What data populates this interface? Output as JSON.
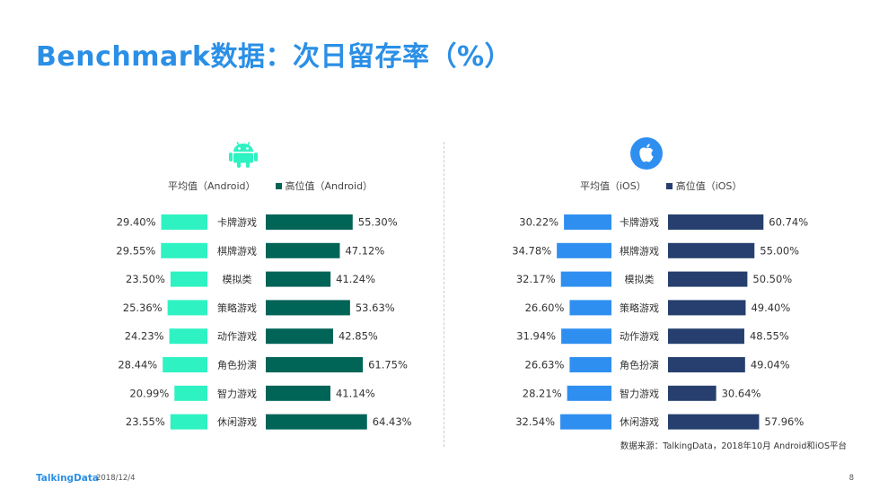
{
  "title": "Benchmark数据：次日留存率（%）",
  "colors": {
    "title": "#2b8fe6",
    "android_avg": "#2ef2c2",
    "android_high": "#006457",
    "ios_avg": "#2f8ff0",
    "ios_high": "#263f6e"
  },
  "icons": {
    "android": "android-icon",
    "ios": "apple-icon"
  },
  "chart_data": [
    {
      "type": "bar",
      "platform": "Android",
      "categories": [
        "卡牌游戏",
        "棋牌游戏",
        "模拟类",
        "策略游戏",
        "动作游戏",
        "角色扮演",
        "智力游戏",
        "休闲游戏"
      ],
      "series": [
        {
          "name": "平均值（Android）",
          "values": [
            29.4,
            29.55,
            23.5,
            25.36,
            24.23,
            28.44,
            20.99,
            23.55
          ],
          "labels": [
            "29.40%",
            "29.55%",
            "23.50%",
            "25.36%",
            "24.23%",
            "28.44%",
            "20.99%",
            "23.55%"
          ]
        },
        {
          "name": "高位值（Android）",
          "values": [
            55.3,
            47.12,
            41.24,
            53.63,
            42.85,
            61.75,
            41.14,
            64.43
          ],
          "labels": [
            "55.30%",
            "47.12%",
            "41.24%",
            "53.63%",
            "42.85%",
            "61.75%",
            "41.14%",
            "64.43%"
          ]
        }
      ]
    },
    {
      "type": "bar",
      "platform": "iOS",
      "categories": [
        "卡牌游戏",
        "棋牌游戏",
        "模拟类",
        "策略游戏",
        "动作游戏",
        "角色扮演",
        "智力游戏",
        "休闲游戏"
      ],
      "series": [
        {
          "name": "平均值（iOS）",
          "values": [
            30.22,
            34.78,
            32.17,
            26.6,
            31.94,
            26.63,
            28.21,
            32.54
          ],
          "labels": [
            "30.22%",
            "34.78%",
            "32.17%",
            "26.60%",
            "31.94%",
            "26.63%",
            "28.21%",
            "32.54%"
          ]
        },
        {
          "name": "高位值（iOS）",
          "values": [
            60.74,
            55.0,
            50.5,
            49.4,
            48.55,
            49.04,
            30.64,
            57.96
          ],
          "labels": [
            "60.74%",
            "55.00%",
            "50.50%",
            "49.40%",
            "48.55%",
            "49.04%",
            "30.64%",
            "57.96%"
          ]
        }
      ]
    }
  ],
  "source": "数据来源：TalkingData，2018年10月 Android和iOS平台",
  "footer": {
    "logo": "TalkingData",
    "date": "2018/12/4",
    "page": "8"
  }
}
